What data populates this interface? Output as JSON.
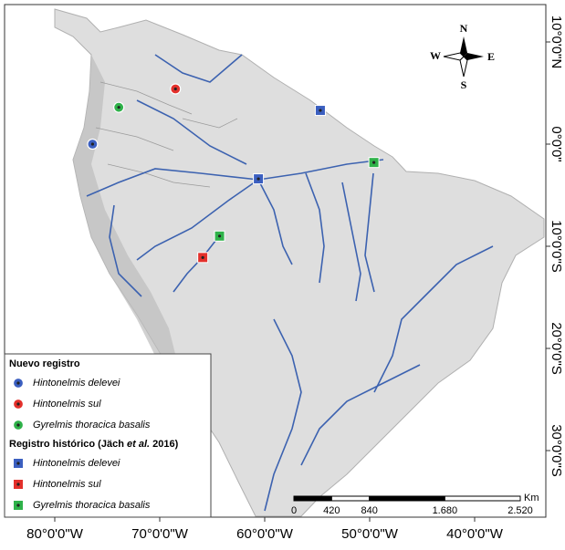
{
  "map": {
    "lon_ticks": [
      {
        "value": -80,
        "label": "80°0'0\"W"
      },
      {
        "value": -70,
        "label": "70°0'0\"W"
      },
      {
        "value": -60,
        "label": "60°0'0\"W"
      },
      {
        "value": -50,
        "label": "50°0'0\"W"
      },
      {
        "value": -40,
        "label": "40°0'0\"W"
      }
    ],
    "lat_ticks": [
      {
        "value": 10,
        "label": "10°0'0\"N"
      },
      {
        "value": 0,
        "label": "0°0'0\""
      },
      {
        "value": -10,
        "label": "10°0'0\"S"
      },
      {
        "value": -20,
        "label": "20°0'0\"S"
      },
      {
        "value": -30,
        "label": "30°0'0\"S"
      }
    ],
    "compass": {
      "north": "N",
      "south": "S",
      "east": "E",
      "west": "W"
    },
    "scale": {
      "unit": "Km",
      "ticks": [
        0,
        420,
        840,
        {
          "value": 1680,
          "label": "1.680"
        },
        {
          "value": 2520,
          "label": "2.520"
        }
      ]
    },
    "legend": {
      "groups": [
        {
          "title": [
            "Nuevo registro"
          ],
          "symbol": "circle",
          "items": [
            {
              "name": "Hintonelmis delevei",
              "color": "#3b5fc0",
              "points": [
                {
                  "lon": -76.4,
                  "lat": 0.0
                }
              ]
            },
            {
              "name": "Hintonelmis sul",
              "color": "#e3302b",
              "points": [
                {
                  "lon": -68.5,
                  "lat": 5.4
                }
              ]
            },
            {
              "name": "Gyrelmis thoracica basalis",
              "color": "#2fb24a",
              "points": [
                {
                  "lon": -73.9,
                  "lat": 3.6
                }
              ]
            }
          ]
        },
        {
          "title": [
            "Registro histórico (Jäch ",
            "et al.",
            " 2016)"
          ],
          "symbol": "square",
          "items": [
            {
              "name": "Hintonelmis delevei",
              "color": "#3b5fc0",
              "points": [
                {
                  "lon": -54.7,
                  "lat": 3.3
                },
                {
                  "lon": -60.6,
                  "lat": -3.4
                }
              ]
            },
            {
              "name": "Hintonelmis sul",
              "color": "#e3302b",
              "points": [
                {
                  "lon": -65.9,
                  "lat": -11.1
                }
              ]
            },
            {
              "name": "Gyrelmis thoracica basalis",
              "color": "#2fb24a",
              "points": [
                {
                  "lon": -49.6,
                  "lat": -1.8
                },
                {
                  "lon": -64.3,
                  "lat": -9.0
                }
              ]
            }
          ]
        }
      ]
    }
  }
}
